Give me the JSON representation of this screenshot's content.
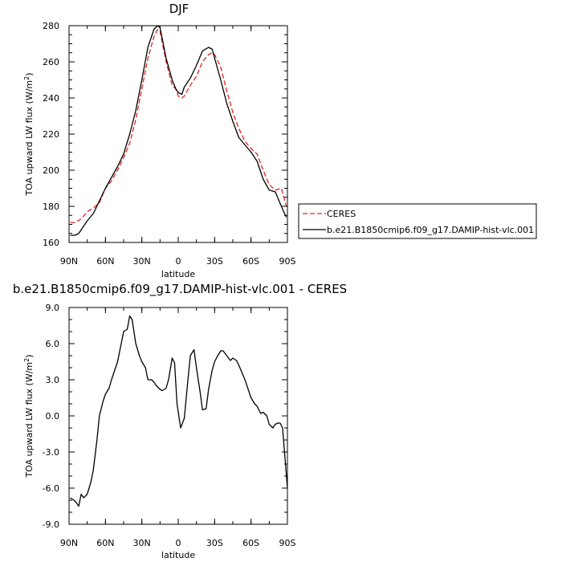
{
  "chart_data": [
    {
      "type": "line",
      "title": "DJF",
      "xlabel": "latitude",
      "ylabel": "TOA upward LW flux (W/m",
      "ylabel_sup": "2",
      "ylabel_close": ")",
      "xlim": [
        90,
        -90
      ],
      "ylim": [
        160,
        280
      ],
      "xticks": [
        90,
        60,
        30,
        0,
        -30,
        -60,
        -90
      ],
      "xtick_labels": [
        "90N",
        "60N",
        "30N",
        "0",
        "30S",
        "60S",
        "90S"
      ],
      "yticks": [
        160,
        180,
        200,
        220,
        240,
        260,
        280
      ],
      "ytick_labels": [
        "160",
        "180",
        "200",
        "220",
        "240",
        "260",
        "280"
      ],
      "legend": {
        "placement": "right",
        "entries": [
          "CERES",
          "b.e21.B1850cmip6.f09_g17.DAMIP-hist-vlc.001"
        ]
      },
      "series": [
        {
          "name": "CERES",
          "color": "#e8201e",
          "dash": "dashed",
          "x": [
            89,
            85,
            80,
            75,
            70,
            65,
            60,
            55,
            50,
            45,
            40,
            35,
            30,
            25,
            20,
            17,
            15,
            10,
            5,
            2,
            0,
            -3,
            -5,
            -10,
            -15,
            -20,
            -25,
            -28,
            -30,
            -35,
            -40,
            -45,
            -50,
            -55,
            -60,
            -65,
            -70,
            -75,
            -80,
            -85,
            -89
          ],
          "y": [
            171,
            171,
            173,
            177,
            179,
            182,
            190,
            194,
            200,
            207,
            215,
            228,
            245,
            262,
            274,
            278,
            277,
            260,
            247,
            245,
            241,
            240,
            241,
            247,
            252,
            260,
            264,
            265,
            264,
            257,
            244,
            232,
            223,
            216,
            212,
            209,
            200,
            192,
            189,
            190,
            180
          ]
        },
        {
          "name": "b.e21.B1850cmip6.f09_g17.DAMIP-hist-vlc.001",
          "color": "#000000",
          "dash": "solid",
          "x": [
            89,
            85,
            82,
            80,
            75,
            70,
            65,
            60,
            55,
            50,
            45,
            40,
            35,
            30,
            25,
            20,
            17,
            15,
            10,
            5,
            2,
            0,
            -3,
            -5,
            -10,
            -15,
            -20,
            -25,
            -28,
            -30,
            -35,
            -40,
            -45,
            -50,
            -55,
            -60,
            -65,
            -70,
            -75,
            -80,
            -85,
            -89
          ],
          "y": [
            164,
            164,
            165,
            167,
            172,
            176,
            183,
            190,
            196,
            202,
            209,
            220,
            233,
            250,
            268,
            278,
            280,
            279,
            262,
            250,
            245,
            243,
            242,
            246,
            251,
            258,
            266,
            268,
            267,
            262,
            250,
            237,
            227,
            218,
            214,
            210,
            205,
            195,
            189,
            188,
            180,
            174
          ]
        }
      ]
    },
    {
      "type": "line",
      "title": "b.e21.B1850cmip6.f09_g17.DAMIP-hist-vlc.001 - CERES",
      "xlabel": "latitude",
      "ylabel": "TOA upward LW flux (W/m",
      "ylabel_sup": "2",
      "ylabel_close": ")",
      "xlim": [
        90,
        -90
      ],
      "ylim": [
        -9,
        9
      ],
      "xticks": [
        90,
        60,
        30,
        0,
        -30,
        -60,
        -90
      ],
      "xtick_labels": [
        "90N",
        "60N",
        "30N",
        "0",
        "30S",
        "60S",
        "90S"
      ],
      "yticks": [
        -9,
        -6,
        -3,
        0,
        3,
        6,
        9
      ],
      "ytick_labels": [
        "-9.0",
        "-6.0",
        "-3.0",
        "0.0",
        "3.0",
        "6.0",
        "9.0"
      ],
      "series": [
        {
          "color": "#000000",
          "dash": "solid",
          "x": [
            89,
            86,
            84,
            82,
            80,
            78,
            75,
            72,
            70,
            67,
            65,
            62,
            60,
            57,
            55,
            50,
            45,
            42,
            40,
            38,
            35,
            32,
            30,
            27,
            25,
            22,
            20,
            18,
            15,
            13,
            10,
            8,
            5,
            3,
            1,
            -2,
            -5,
            -8,
            -10,
            -13,
            -15,
            -18,
            -20,
            -23,
            -25,
            -28,
            -30,
            -32,
            -35,
            -37,
            -40,
            -43,
            -45,
            -48,
            -50,
            -55,
            -60,
            -63,
            -65,
            -68,
            -70,
            -73,
            -75,
            -78,
            -80,
            -82,
            -84,
            -86,
            -88,
            -90
          ],
          "y": [
            -6.8,
            -7,
            -7.2,
            -7.5,
            -6.5,
            -6.8,
            -6.5,
            -5.5,
            -4.5,
            -2,
            0,
            1.2,
            1.8,
            2.3,
            3,
            4.5,
            7,
            7.2,
            8.3,
            8,
            6,
            5,
            4.5,
            4,
            3,
            3,
            2.8,
            2.5,
            2.2,
            2.1,
            2.3,
            3,
            4.8,
            4.4,
            1,
            -1,
            -0.2,
            3,
            5,
            5.5,
            4,
            2,
            0.5,
            0.6,
            2.2,
            3.8,
            4.5,
            4.9,
            5.4,
            5.4,
            5,
            4.6,
            4.8,
            4.6,
            4.2,
            3,
            1.5,
            1,
            0.8,
            0.2,
            0.3,
            0,
            -0.7,
            -1,
            -0.7,
            -0.6,
            -0.6,
            -1,
            -3.5,
            -6
          ]
        }
      ]
    }
  ]
}
